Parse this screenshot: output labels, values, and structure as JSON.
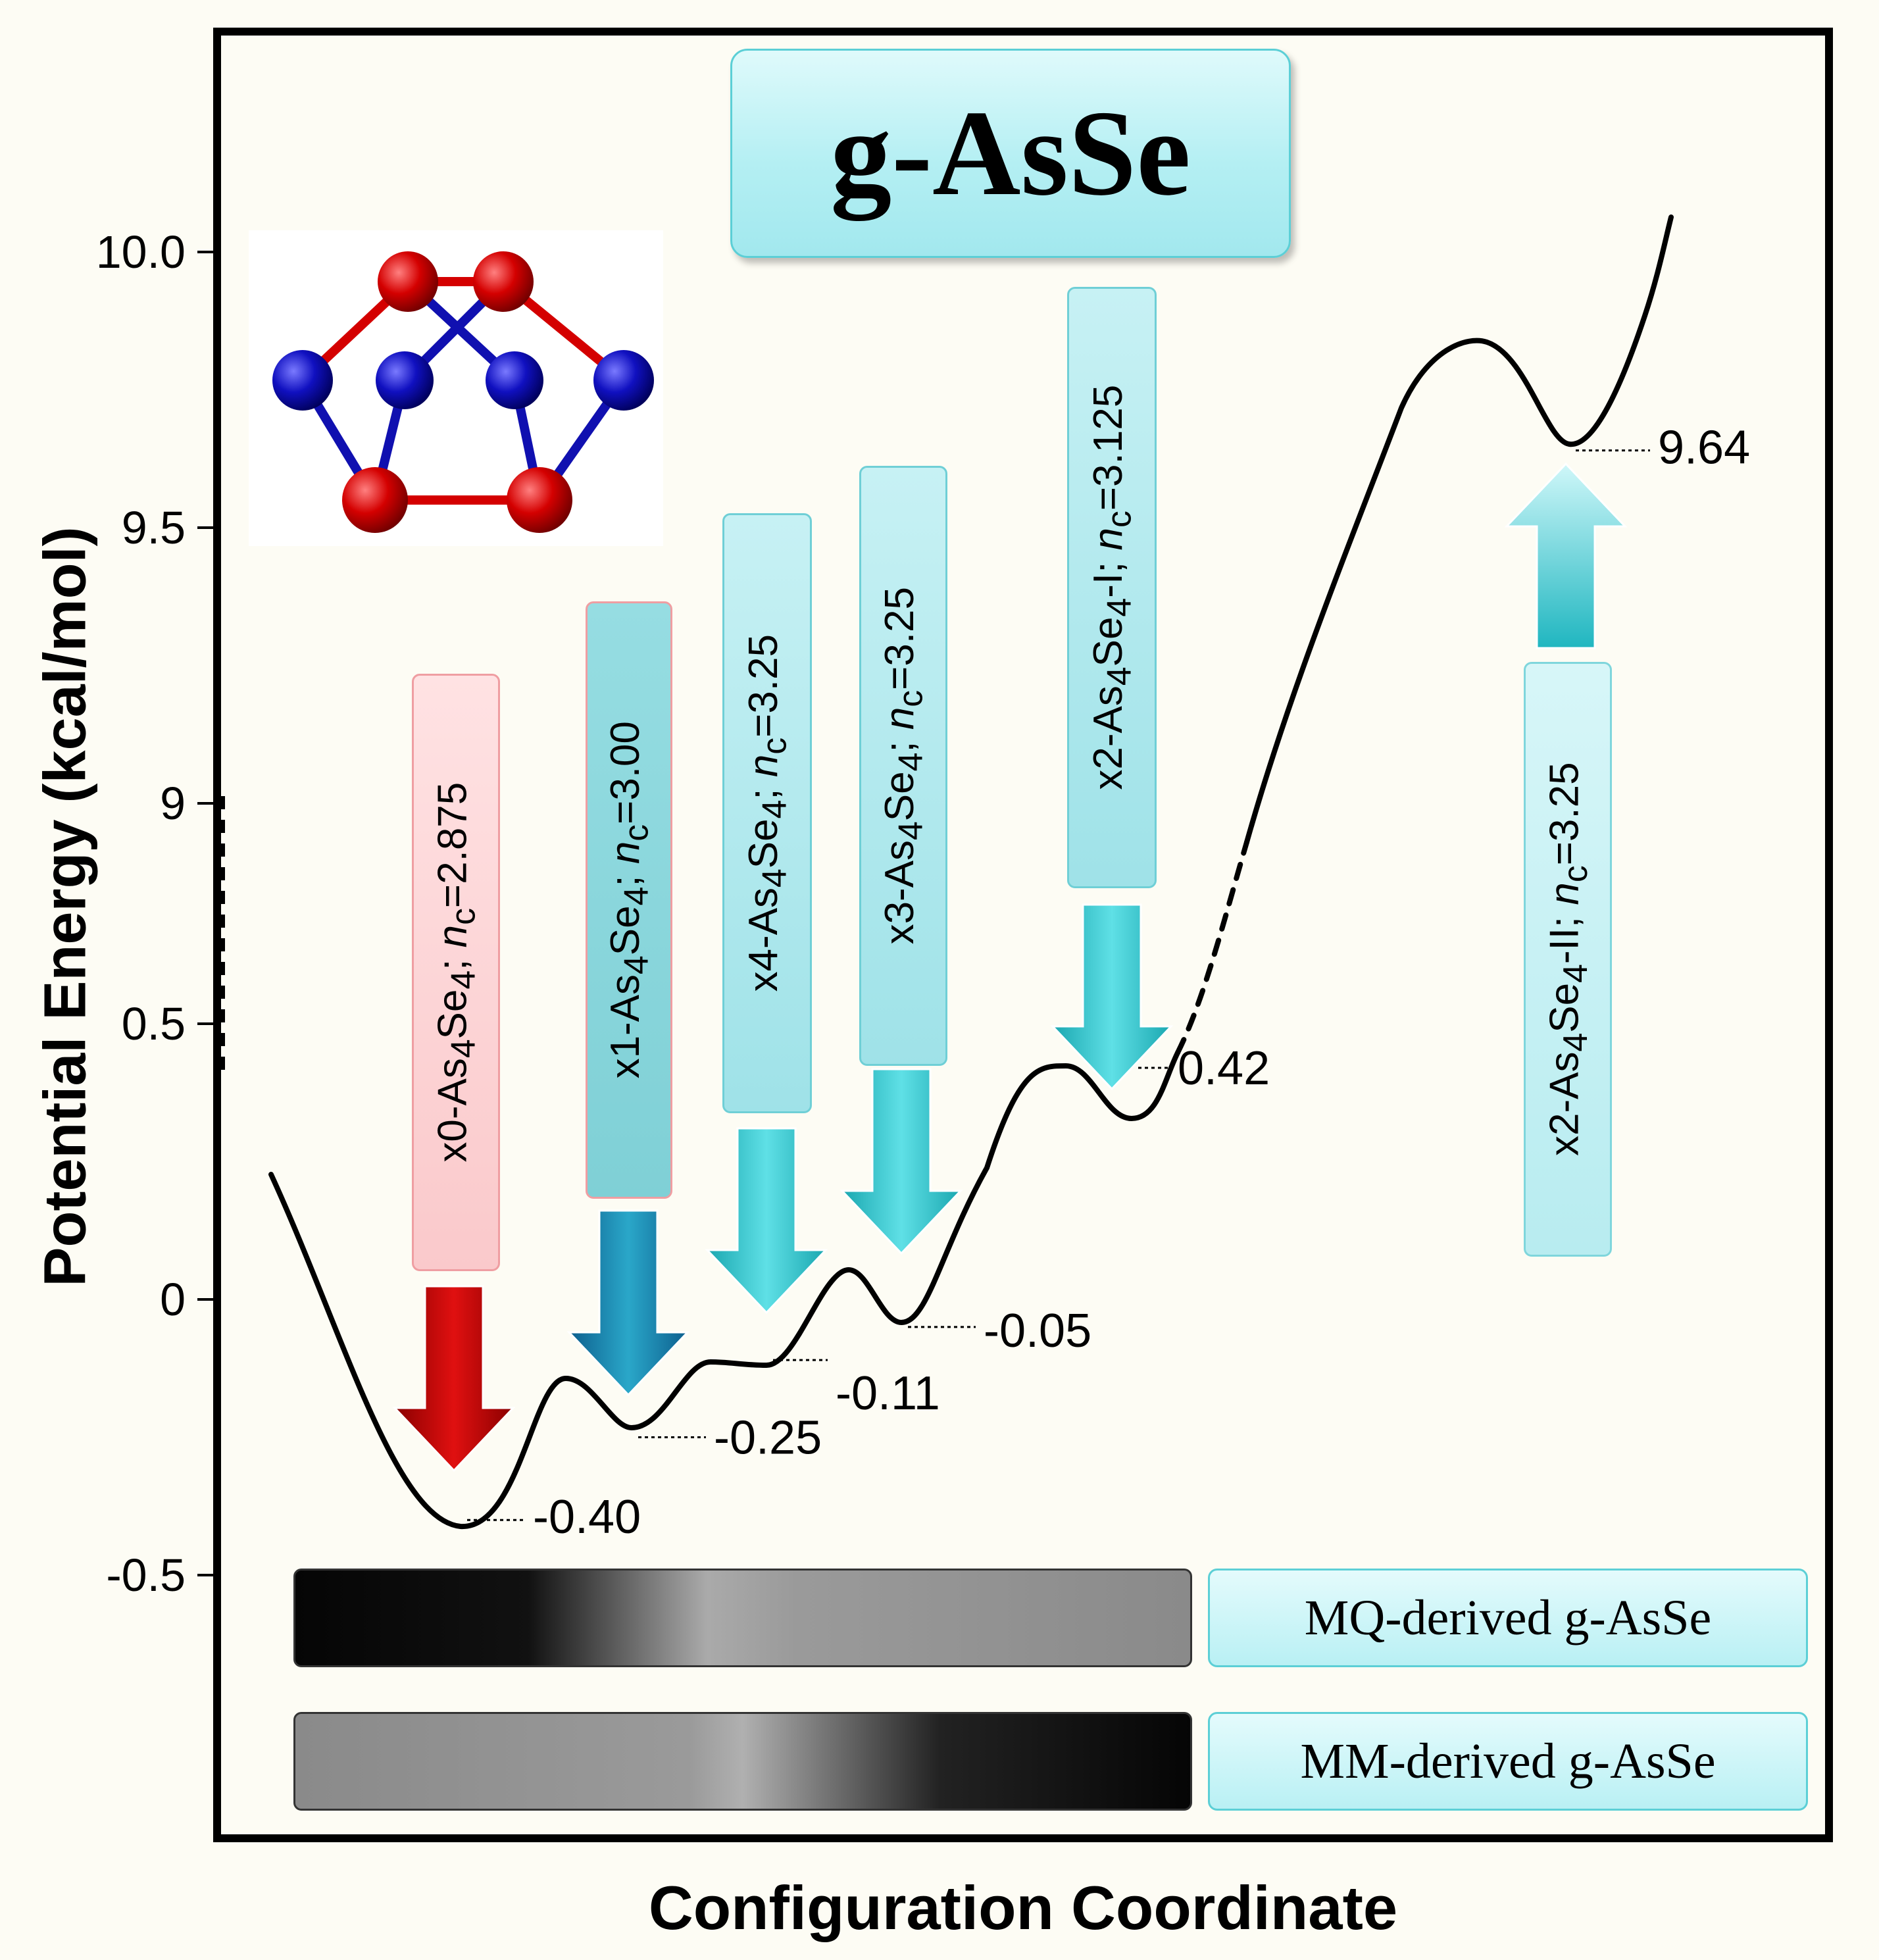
{
  "title": "g-AsSe",
  "colors": {
    "background": "#fdfcf4",
    "curve": "#000000",
    "red_arrow": "#d10000",
    "cyan_arrow": "#2cc3cc",
    "blue_arrow": "#1a88b8",
    "atom_red": "#d40000",
    "atom_blue": "#1010b0"
  },
  "axes": {
    "ylabel": "Potential Energy (kcal/mol)",
    "xlabel": "Configuration Coordinate"
  },
  "legend": {
    "mq_label": "MQ-derived g-AsSe",
    "mm_label": "MM-derived g-AsSe"
  },
  "conformers": [
    {
      "prefix": "x0-As",
      "sub1": "4",
      "mid": "Se",
      "sub2": "4",
      "suffix": "; ",
      "n": "n",
      "nsub": "c",
      "val": "=2.875"
    },
    {
      "prefix": "x1-As",
      "sub1": "4",
      "mid": "Se",
      "sub2": "4",
      "suffix": "; ",
      "n": "n",
      "nsub": "c",
      "val": "=3.00"
    },
    {
      "prefix": "x4-As",
      "sub1": "4",
      "mid": "Se",
      "sub2": "4",
      "suffix": "; ",
      "n": "n",
      "nsub": "c",
      "val": "=3.25"
    },
    {
      "prefix": "x3-As",
      "sub1": "4",
      "mid": "Se",
      "sub2": "4",
      "suffix": "; ",
      "n": "n",
      "nsub": "c",
      "val": "=3.25"
    },
    {
      "prefix": "x2-As",
      "sub1": "4",
      "mid": "Se",
      "sub2": "4",
      "suffix": "-I; ",
      "n": "n",
      "nsub": "c",
      "val": "=3.125"
    },
    {
      "prefix": "x2-As",
      "sub1": "4",
      "mid": "Se",
      "sub2": "4",
      "suffix": "-II; ",
      "n": "n",
      "nsub": "c",
      "val": "=3.25"
    }
  ],
  "chart_data": {
    "type": "line",
    "title": "g-AsSe",
    "xlabel": "Configuration Coordinate",
    "ylabel": "Potential Energy (kcal/mol)",
    "y_ticks": [
      "-0.5",
      "0",
      "0.5",
      "9",
      "9.5",
      "10.0"
    ],
    "y_tick_values": [
      -0.5,
      0,
      0.5,
      9,
      9.5,
      10.0
    ],
    "broken_axis": {
      "lower_range": [
        -0.8,
        0.9
      ],
      "upper_range": [
        8.9,
        10.3
      ]
    },
    "minima": [
      {
        "conformer": "x0",
        "energy": -0.4,
        "label": "-0.40"
      },
      {
        "conformer": "x1",
        "energy": -0.25,
        "label": "-0.25"
      },
      {
        "conformer": "x4",
        "energy": -0.11,
        "label": "-0.11"
      },
      {
        "conformer": "x3",
        "energy": -0.05,
        "label": "-0.05"
      },
      {
        "conformer": "x2-I",
        "energy": 0.42,
        "label": "0.42"
      },
      {
        "conformer": "x2-II",
        "energy": 9.64,
        "label": "9.64"
      }
    ],
    "grid": false
  }
}
